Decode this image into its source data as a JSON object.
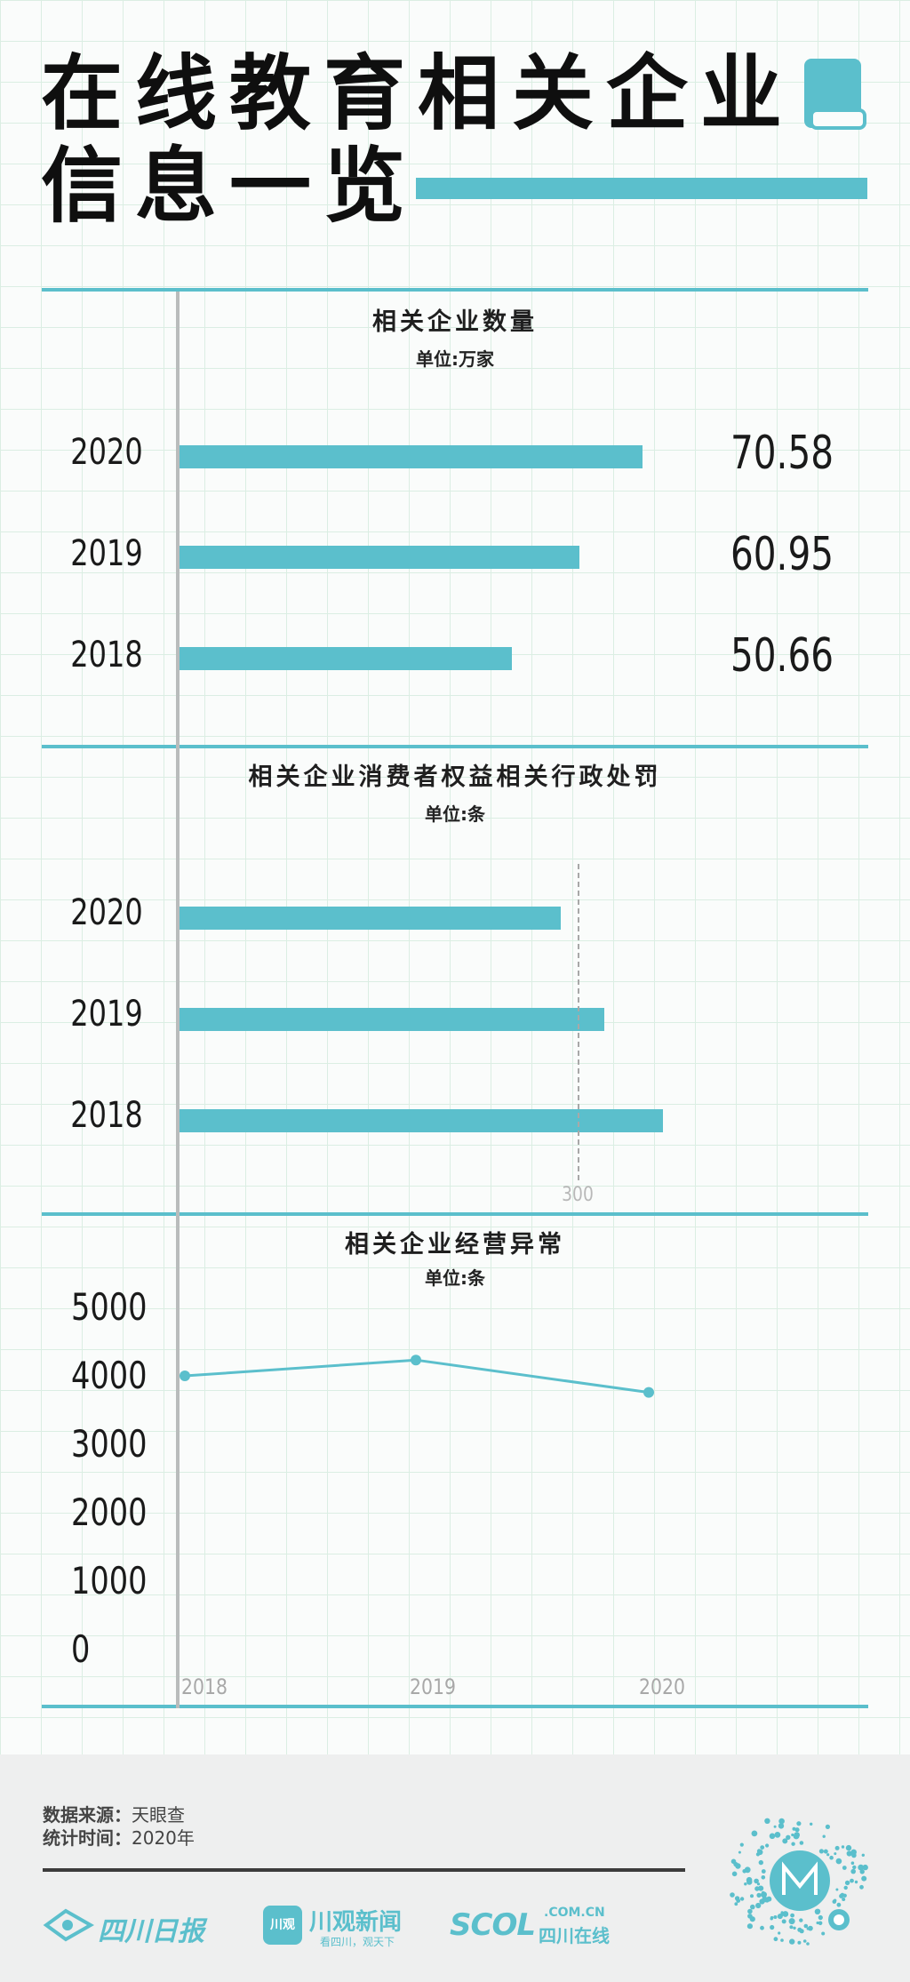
{
  "header": {
    "title_line1": "在线教育相关企业",
    "title_line2": "信息一览",
    "accent_color": "#5bbfcc"
  },
  "icons": [
    "book-icon",
    "qr-code-icon"
  ],
  "panel1": {
    "title": "相关企业数量",
    "unit": "单位:万家",
    "rows": [
      {
        "year": "2020",
        "value": "70.58"
      },
      {
        "year": "2019",
        "value": "60.95"
      },
      {
        "year": "2018",
        "value": "50.66"
      }
    ]
  },
  "panel2": {
    "title": "相关企业消费者权益相关行政处罚",
    "unit": "单位:条",
    "ref_label": "300",
    "rows": [
      {
        "year": "2020"
      },
      {
        "year": "2019"
      },
      {
        "year": "2018"
      }
    ]
  },
  "panel3": {
    "title": "相关企业经营异常",
    "unit": "单位:条",
    "y_ticks": [
      "5000",
      "4000",
      "3000",
      "2000",
      "1000",
      "0"
    ],
    "x_ticks": [
      "2018",
      "2019",
      "2020"
    ]
  },
  "chart_data": [
    {
      "type": "bar",
      "title": "相关企业数量",
      "ylabel": "单位:万家",
      "categories": [
        "2020",
        "2019",
        "2018"
      ],
      "values": [
        70.58,
        60.95,
        50.66
      ],
      "orientation": "horizontal"
    },
    {
      "type": "bar",
      "title": "相关企业消费者权益相关行政处罚",
      "ylabel": "单位:条",
      "categories": [
        "2020",
        "2019",
        "2018"
      ],
      "values": [
        287,
        320,
        364
      ],
      "reference_line": 300,
      "orientation": "horizontal"
    },
    {
      "type": "line",
      "title": "相关企业经营异常",
      "ylabel": "单位:条",
      "x": [
        "2018",
        "2019",
        "2020"
      ],
      "values": [
        4020,
        4250,
        3780
      ],
      "ylim": [
        0,
        5000
      ]
    }
  ],
  "footer": {
    "source_label": "数据来源：",
    "source_value": "天眼查",
    "time_label": "统计时间：",
    "time_value": "2020年",
    "logo1": "四川日报",
    "logo2_main": "川观新闻",
    "logo2_badge": "川观",
    "logo2_sub": "看四川，观天下",
    "logo3_main": "SCOL",
    "logo3_domain": ".COM.CN",
    "logo3_sub": "四川在线"
  }
}
